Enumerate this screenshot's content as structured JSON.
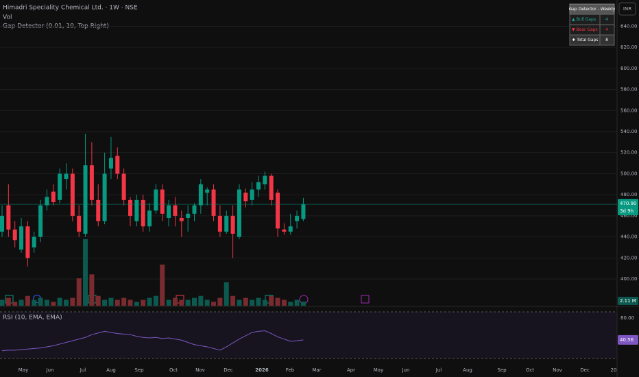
{
  "chart_data": {
    "type": "candlestick",
    "title": "Himadri Speciality Chemical Ltd. · 1W · NSE",
    "indicator_labels": [
      "Vol",
      "Gap Detector (0.01, 10, Top Right)"
    ],
    "currency": "INR",
    "up_color": "#089981",
    "down_color": "#f23645",
    "open": [
      445,
      470,
      447,
      428,
      450,
      430,
      440,
      470,
      483,
      475,
      495,
      500,
      460,
      443,
      508,
      475,
      455,
      505,
      517,
      500,
      475,
      455,
      475,
      450,
      465,
      485,
      458,
      470,
      458,
      458,
      462,
      470,
      482,
      485,
      460,
      445,
      460,
      440,
      482,
      475,
      485,
      490,
      498,
      482,
      447,
      445,
      455,
      457
    ],
    "high": [
      470,
      490,
      455,
      458,
      455,
      445,
      475,
      485,
      490,
      505,
      510,
      505,
      470,
      538,
      530,
      490,
      520,
      535,
      525,
      505,
      478,
      480,
      480,
      472,
      490,
      490,
      475,
      478,
      465,
      470,
      472,
      495,
      487,
      490,
      470,
      465,
      470,
      490,
      486,
      492,
      498,
      502,
      500,
      485,
      453,
      462,
      465,
      477
    ],
    "low": [
      440,
      440,
      430,
      425,
      412,
      425,
      435,
      465,
      470,
      472,
      485,
      455,
      440,
      440,
      470,
      450,
      452,
      495,
      495,
      470,
      450,
      450,
      445,
      445,
      462,
      455,
      450,
      450,
      440,
      445,
      455,
      462,
      470,
      455,
      440,
      443,
      420,
      438,
      468,
      470,
      478,
      485,
      470,
      440,
      442,
      442,
      448,
      455
    ],
    "close": [
      460,
      447,
      437,
      450,
      420,
      440,
      470,
      478,
      473,
      500,
      500,
      460,
      445,
      508,
      475,
      455,
      500,
      515,
      500,
      475,
      460,
      475,
      450,
      465,
      485,
      462,
      470,
      460,
      455,
      462,
      470,
      490,
      485,
      460,
      445,
      460,
      443,
      485,
      474,
      485,
      492,
      498,
      475,
      448,
      445,
      450,
      460,
      470.9
    ],
    "ylim": [
      374,
      665
    ],
    "yticks": [
      {
        "value": 400,
        "label": "400.00"
      },
      {
        "value": 420,
        "label": "420.00"
      },
      {
        "value": 440,
        "label": "440.00"
      },
      {
        "value": 460,
        "label": "460.00"
      },
      {
        "value": 480,
        "label": "480.00"
      },
      {
        "value": 500,
        "label": "500.00"
      },
      {
        "value": 520,
        "label": "520.00"
      },
      {
        "value": 540,
        "label": "540.00"
      },
      {
        "value": 560,
        "label": "560.00"
      },
      {
        "value": 580,
        "label": "580.00"
      },
      {
        "value": 600,
        "label": "600.00"
      },
      {
        "value": 620,
        "label": "620.00"
      },
      {
        "value": 640,
        "label": "640.00"
      }
    ],
    "last_price": {
      "value": 470.9,
      "label": "470.90"
    },
    "countdown": "3d 9h",
    "x_labels": [
      "May",
      "Jun",
      "Jul",
      "Aug",
      "Sep",
      "Oct",
      "Nov",
      "Dec",
      "2026",
      "Feb",
      "Mar",
      "Apr",
      "May",
      "Jun",
      "Jul",
      "Aug",
      "Sep",
      "Oct",
      "Nov",
      "Dec",
      "20"
    ],
    "volume": {
      "values": [
        3,
        4,
        2,
        3,
        5,
        3,
        4,
        3,
        2,
        4,
        3,
        4,
        14,
        34,
        16,
        5,
        3,
        4,
        3,
        4,
        3,
        2,
        3,
        4,
        5,
        21,
        3,
        4,
        3,
        3,
        4,
        5,
        3,
        2,
        4,
        12,
        5,
        3,
        4,
        3,
        4,
        3,
        5,
        4,
        3,
        2,
        3,
        2.11
      ],
      "ylim": [
        0,
        35
      ],
      "last_label": "2.11 M"
    },
    "rsi": {
      "title": "RSI (10, EMA, EMA)",
      "color": "#7e57c2",
      "values": [
        21,
        22,
        22,
        23,
        24,
        25,
        26,
        28,
        30,
        33,
        36,
        39,
        42,
        45,
        50,
        53,
        56,
        54,
        52,
        51,
        50,
        47,
        45,
        44,
        45,
        43,
        44,
        42,
        40,
        36,
        32,
        30,
        28,
        25,
        22,
        28,
        35,
        42,
        48,
        54,
        56,
        57,
        52,
        46,
        42,
        38,
        39,
        40.56
      ],
      "ylim": [
        7,
        91
      ],
      "yticks": [
        {
          "value": 80,
          "label": "80.00"
        }
      ]
    },
    "gap_table": {
      "title": "Gap Detector - Weekly",
      "rows": [
        {
          "label": "▲ Bull Gaps",
          "value": 4,
          "color": "#26a69a"
        },
        {
          "label": "▼ Bear Gaps",
          "value": 4,
          "color": "#f23645"
        },
        {
          "label": "♦ Total Gaps",
          "value": 8,
          "color": "#ffffff"
        }
      ]
    }
  }
}
